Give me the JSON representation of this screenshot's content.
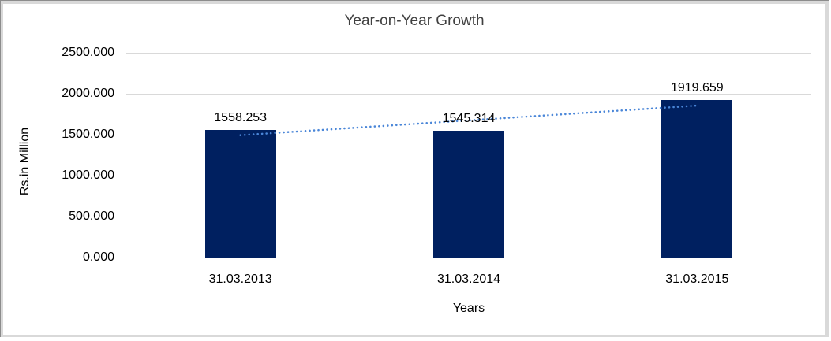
{
  "chart_data": {
    "type": "bar",
    "title": "Year-on-Year Growth",
    "xlabel": "Years",
    "ylabel": "Rs.in Million",
    "categories": [
      "31.03.2013",
      "31.03.2014",
      "31.03.2015"
    ],
    "values": [
      1558.253,
      1545.314,
      1919.659
    ],
    "data_labels": [
      "1558.253",
      "1545.314",
      "1919.659"
    ],
    "y_ticks": [
      "0.000",
      "500.000",
      "1000.000",
      "1500.000",
      "2000.000",
      "2500.000"
    ],
    "ylim": [
      0,
      2500
    ],
    "grid": true,
    "legend": "none",
    "trendline": {
      "type": "linear",
      "style": "dotted"
    },
    "colors": {
      "bar": "#002060",
      "trendline": "#4a86d8",
      "gridline": "#d9d9d9",
      "title_text": "#404040",
      "axis_text": "#000000",
      "frame": "#d9d9d9"
    }
  }
}
